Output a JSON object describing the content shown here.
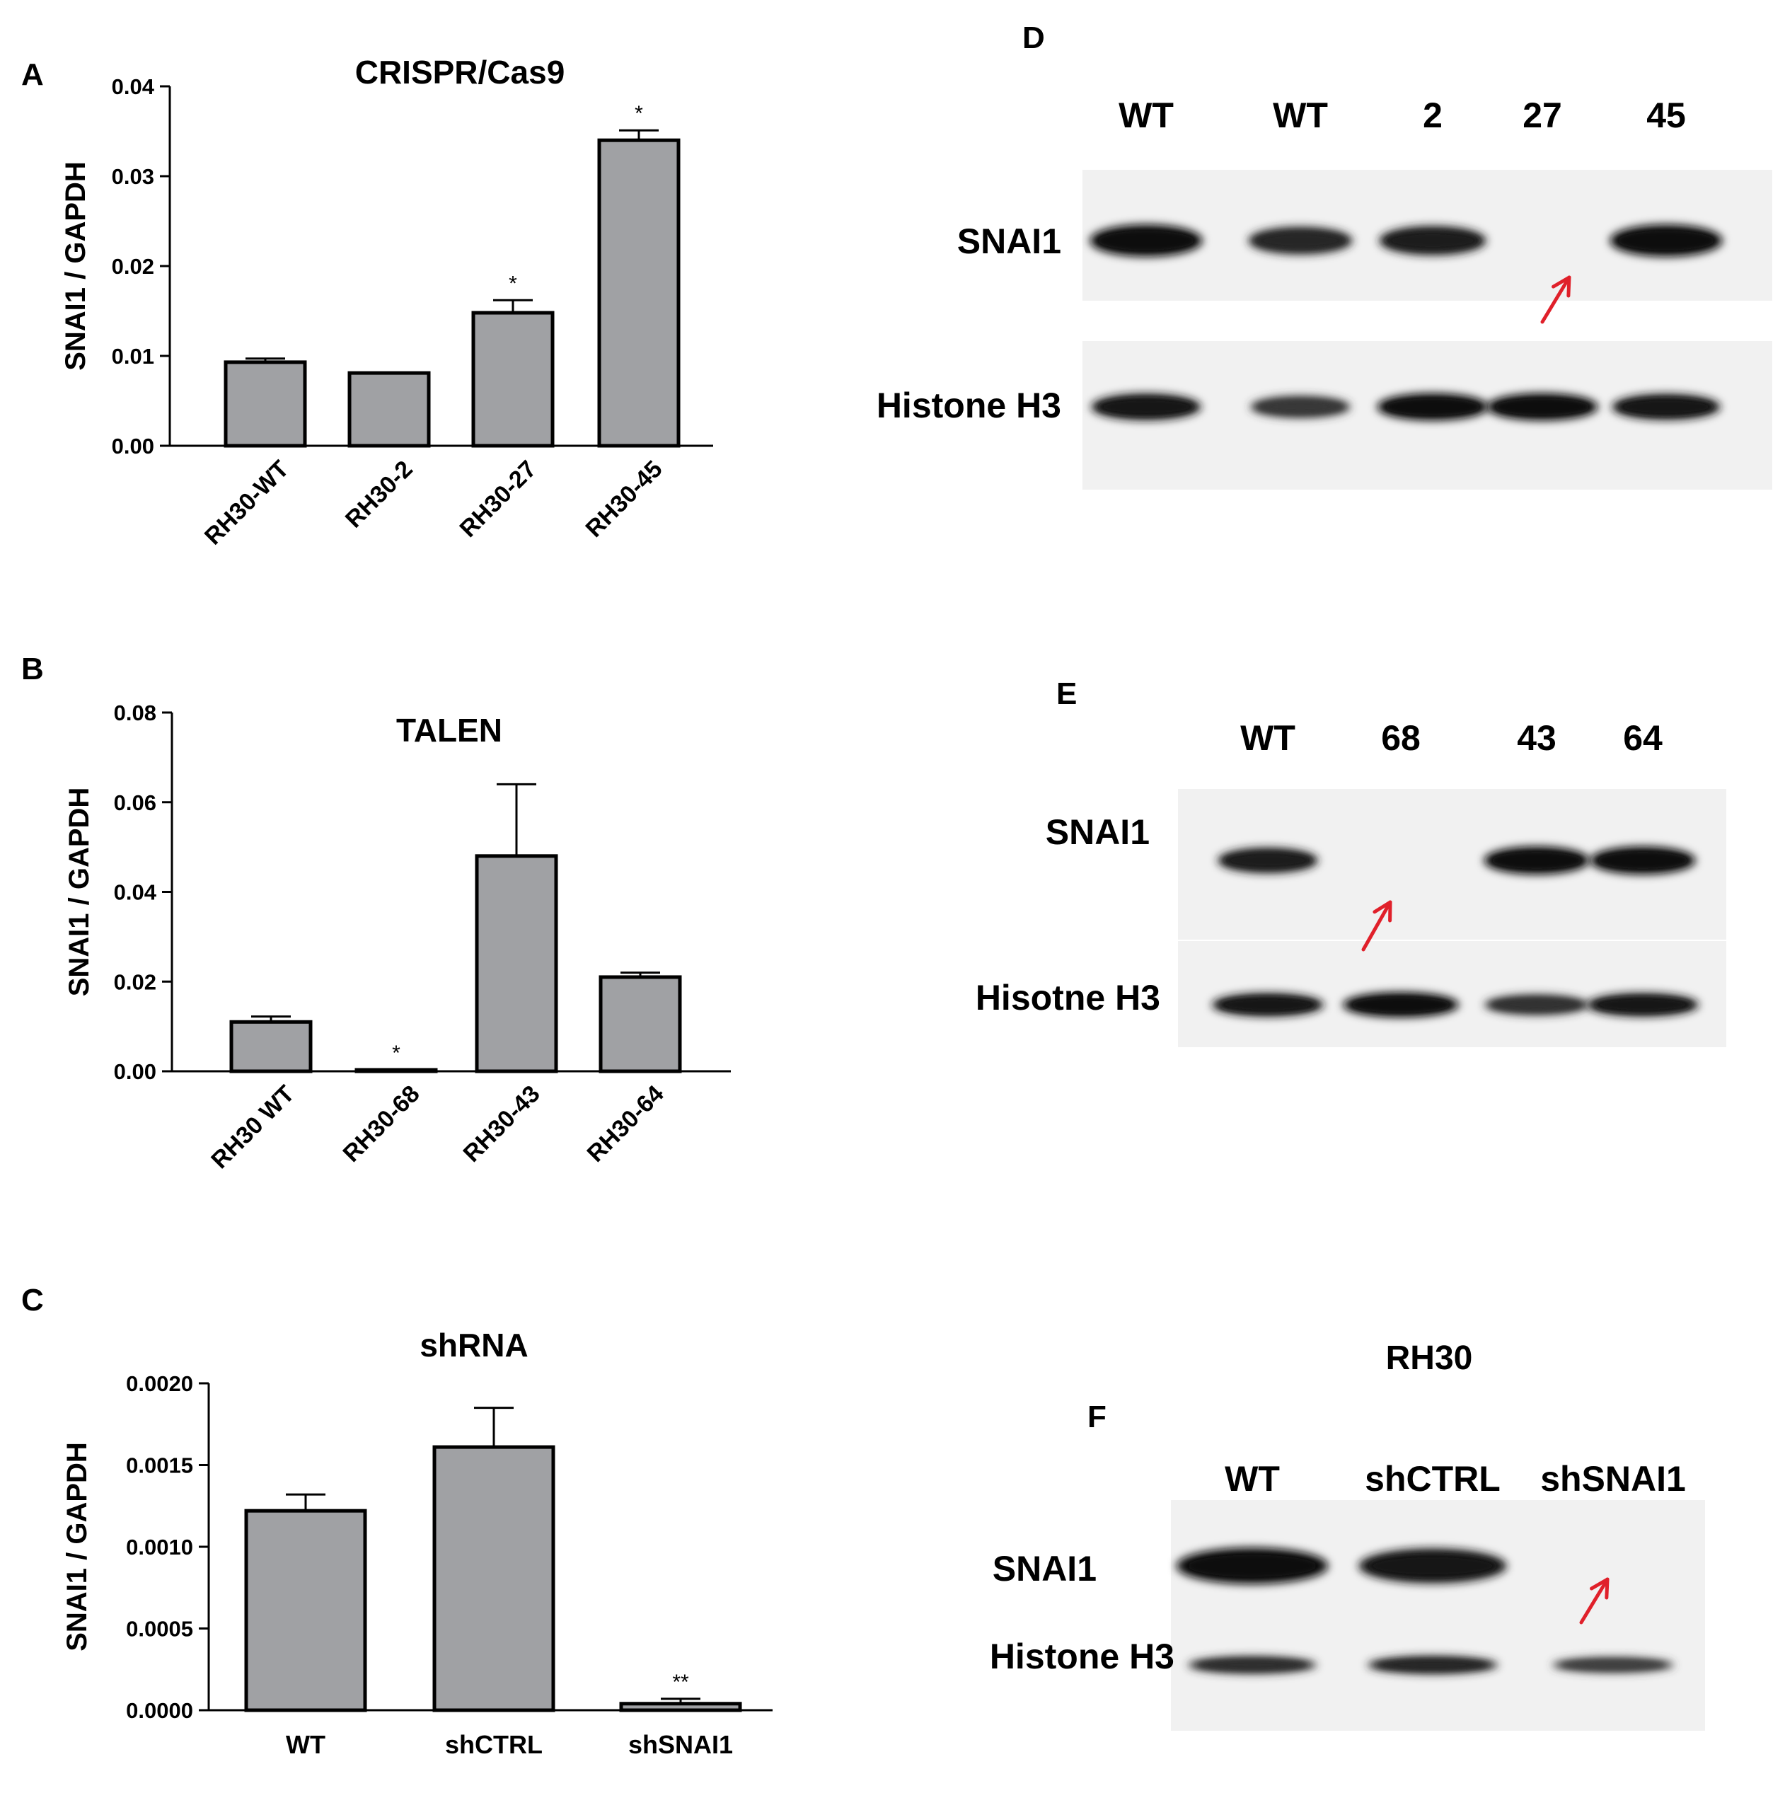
{
  "panel_letters": [
    "A",
    "B",
    "C",
    "D",
    "E",
    "F"
  ],
  "chart_data": [
    {
      "panel": "A",
      "type": "bar",
      "title": "CRISPR/Cas9",
      "xlabel": "",
      "ylabel": "SNAI1 / GAPDH",
      "ylim": [
        0,
        0.04
      ],
      "yticks": [
        "0.00",
        "0.01",
        "0.02",
        "0.03",
        "0.04"
      ],
      "categories": [
        "RH30-WT",
        "RH30-2",
        "RH30-27",
        "RH30-45"
      ],
      "values": [
        0.0093,
        0.0081,
        0.0148,
        0.034
      ],
      "errors": [
        0.0004,
        0.0,
        0.0014,
        0.0011
      ],
      "annotations": [
        "",
        "",
        "*",
        "*"
      ],
      "bar_color": "#a0a1a4",
      "grid": false,
      "legend": "none"
    },
    {
      "panel": "B",
      "type": "bar",
      "title": "TALEN",
      "xlabel": "",
      "ylabel": "SNAI1 / GAPDH",
      "ylim": [
        0,
        0.08
      ],
      "yticks": [
        "0.00",
        "0.02",
        "0.04",
        "0.06",
        "0.08"
      ],
      "categories": [
        "RH30 WT",
        "RH30-68",
        "RH30-43",
        "RH30-64"
      ],
      "values": [
        0.011,
        0.0003,
        0.048,
        0.021
      ],
      "errors": [
        0.0012,
        0.0,
        0.016,
        0.001
      ],
      "annotations": [
        "",
        "*",
        "",
        ""
      ],
      "bar_color": "#a0a1a4",
      "grid": false,
      "legend": "none"
    },
    {
      "panel": "C",
      "type": "bar",
      "title": "shRNA",
      "xlabel": "",
      "ylabel": "SNAI1 / GAPDH",
      "ylim": [
        0,
        0.002
      ],
      "yticks": [
        "0.0000",
        "0.0005",
        "0.0010",
        "0.0015",
        "0.0020"
      ],
      "categories": [
        "WT",
        "shCTRL",
        "shSNAI1"
      ],
      "values": [
        0.00122,
        0.00161,
        4e-05
      ],
      "errors": [
        0.0001,
        0.00024,
        3e-05
      ],
      "annotations": [
        "",
        "",
        "**"
      ],
      "bar_color": "#a0a1a4",
      "grid": false,
      "legend": "none"
    }
  ],
  "blots": {
    "D": {
      "lanes": [
        "WT",
        "WT",
        "2",
        "27",
        "45"
      ],
      "rows": [
        {
          "label": "SNAI1",
          "intensity": [
            1.0,
            0.7,
            0.8,
            0.0,
            1.0
          ]
        },
        {
          "label": "Histone H3",
          "intensity": [
            0.9,
            0.55,
            0.95,
            0.95,
            0.85
          ]
        }
      ]
    },
    "E": {
      "lanes": [
        "WT",
        "68",
        "43",
        "64"
      ],
      "rows": [
        {
          "label": "SNAI1",
          "intensity": [
            0.8,
            0.0,
            1.0,
            1.0
          ]
        },
        {
          "label": "Hisotne H3",
          "intensity": [
            0.85,
            1.0,
            0.6,
            0.85
          ]
        }
      ]
    },
    "F": {
      "title": "RH30",
      "lanes": [
        "WT",
        "shCTRL",
        "shSNAI1"
      ],
      "rows": [
        {
          "label": "SNAI1",
          "intensity": [
            1.0,
            0.9,
            0.0
          ]
        },
        {
          "label": "Histone H3",
          "intensity": [
            0.65,
            0.7,
            0.45
          ]
        }
      ]
    }
  },
  "colors": {
    "arrow": "#e0202a",
    "bar_edge": "#000000"
  }
}
